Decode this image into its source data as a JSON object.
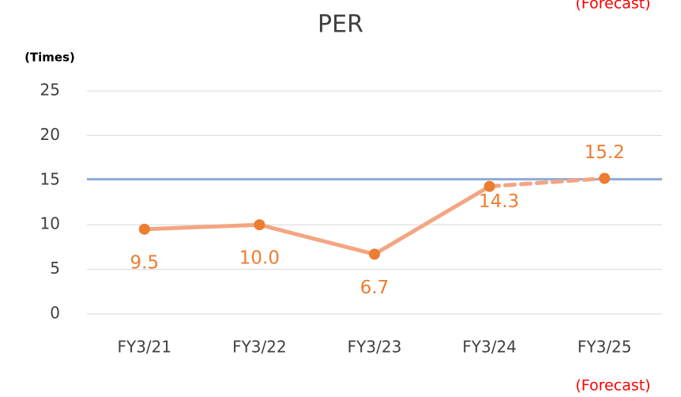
{
  "chart_data": {
    "type": "line",
    "title": "PER",
    "y_label": "(Times)",
    "categories": [
      "FY3/21",
      "FY3/22",
      "FY3/23",
      "FY3/24",
      "FY3/25"
    ],
    "series": [
      {
        "color": "#ed7d31",
        "values": [
          9.5,
          10.0,
          6.7,
          14.3,
          15.2
        ],
        "value_labels": [
          "9.5",
          "10.0",
          "6.7",
          "14.3",
          "15.2"
        ]
      }
    ],
    "line_color": "#f4a582",
    "dashed_segments": [
      3
    ],
    "reference_line": {
      "value": 15.1,
      "color": "#8eaadb"
    },
    "annotations": [
      "(Forecast)",
      "(Forecast)"
    ],
    "annotation_color": "#ff0000",
    "ylim": [
      0,
      25
    ],
    "yticks": [
      0,
      5,
      10,
      15,
      20,
      25
    ],
    "grid": true
  }
}
